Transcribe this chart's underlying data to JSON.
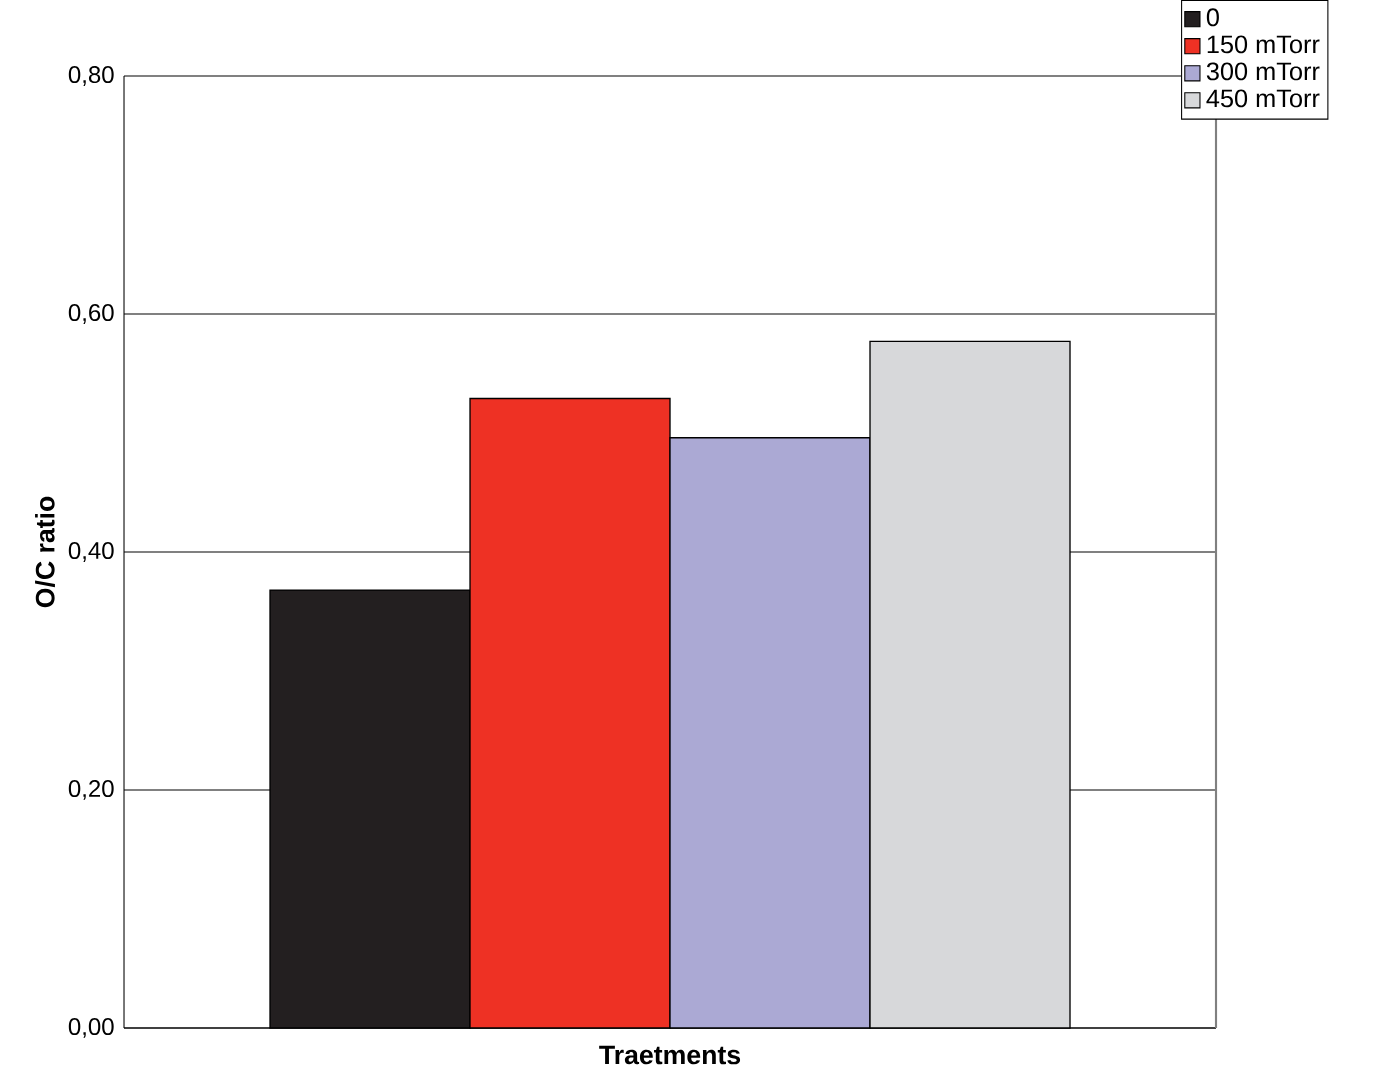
{
  "chart_data": {
    "type": "bar",
    "xlabel": "Traetments",
    "ylabel": "O/C  ratio",
    "categories": [
      null
    ],
    "series": [
      {
        "name": "0",
        "color": "#231f20",
        "values": [
          0.368
        ]
      },
      {
        "name": "150 mTorr",
        "color": "#ee3124",
        "values": [
          0.529
        ]
      },
      {
        "name": "300 mTorr",
        "color": "#aba9d4",
        "values": [
          0.496
        ]
      },
      {
        "name": "450 mTorr",
        "color": "#d7d8da",
        "values": [
          0.577
        ]
      }
    ],
    "ylim": [
      0,
      0.8
    ],
    "yticks": [
      {
        "value": 0,
        "label": "0,00"
      },
      {
        "value": 0.2,
        "label": "0,20"
      },
      {
        "value": 0.4,
        "label": "0,40"
      },
      {
        "value": 0.6,
        "label": "0,60"
      },
      {
        "value": 0.8,
        "label": "0,80"
      }
    ],
    "grid": "y",
    "legend": "top right"
  }
}
